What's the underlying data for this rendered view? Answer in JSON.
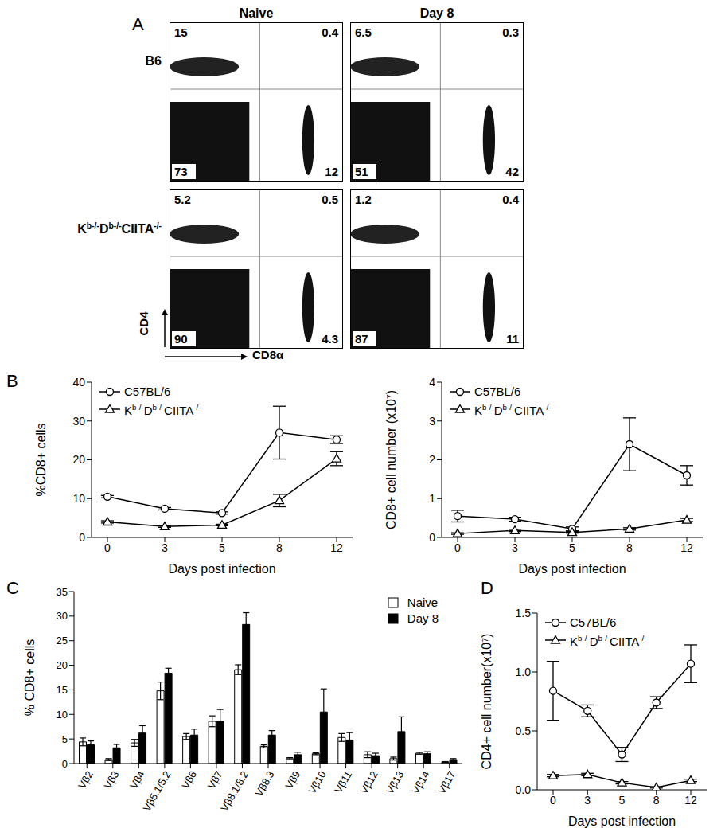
{
  "chart_data": [
    {
      "panel": "A",
      "type": "quadrant_plot",
      "x_label": "CD8α",
      "y_label": "CD4",
      "column_labels": [
        "Naive",
        "Day 8"
      ],
      "row_labels": [
        "B6",
        "Kb-/-Db-/-CIITA-/-"
      ],
      "plots": [
        {
          "row": 0,
          "column": 0,
          "quadrants": {
            "upper_left": 15,
            "upper_right": 0.4,
            "lower_left": 73,
            "lower_right": 12
          }
        },
        {
          "row": 0,
          "column": 1,
          "quadrants": {
            "upper_left": 6.5,
            "upper_right": 0.3,
            "lower_left": 51,
            "lower_right": 42
          }
        },
        {
          "row": 1,
          "column": 0,
          "quadrants": {
            "upper_left": 5.2,
            "upper_right": 0.5,
            "lower_left": 90,
            "lower_right": 4.3
          }
        },
        {
          "row": 1,
          "column": 1,
          "quadrants": {
            "upper_left": 1.2,
            "upper_right": 0.4,
            "lower_left": 87,
            "lower_right": 11
          }
        }
      ]
    },
    {
      "panel": "B",
      "type": "line",
      "x_label": "Days post infection",
      "y_label": "%CD8+ cells",
      "categories": [
        "0",
        "3",
        "5",
        "8",
        "12"
      ],
      "ylim": [
        0,
        40
      ],
      "yticks": [
        0,
        10,
        20,
        30,
        40
      ],
      "grid": false,
      "legend": "upper left",
      "series": [
        {
          "name": "C57BL/6",
          "color": "#000000",
          "marker": "circle",
          "values": [
            10.5,
            7.4,
            6.3,
            27,
            25.2
          ],
          "errors": [
            0.3,
            0.3,
            0.3,
            6.8,
            1.0
          ]
        },
        {
          "name": "Kb-/-Db-/-CIITA-/-",
          "color": "#000000",
          "marker": "triangle",
          "values": [
            4,
            2.8,
            3.2,
            9.5,
            20.3
          ],
          "errors": [
            0.3,
            0.2,
            0.2,
            1.6,
            1.8
          ]
        }
      ]
    },
    {
      "type": "line",
      "x_label": "Days post infection",
      "y_label": "CD8+ cell number (x10⁷)",
      "categories": [
        "0",
        "3",
        "5",
        "8",
        "12"
      ],
      "ylim": [
        0,
        4
      ],
      "yticks": [
        0,
        1,
        2,
        3,
        4
      ],
      "grid": false,
      "legend": "upper left",
      "series": [
        {
          "name": "C57BL/6",
          "color": "#000000",
          "marker": "circle",
          "values": [
            0.55,
            0.47,
            0.22,
            2.4,
            1.6
          ],
          "errors": [
            0.15,
            0.05,
            0.05,
            0.68,
            0.25
          ]
        },
        {
          "name": "Kb-/-Db-/-CIITA-/-",
          "color": "#000000",
          "marker": "triangle",
          "values": [
            0.1,
            0.18,
            0.13,
            0.22,
            0.45
          ],
          "errors": [
            0.02,
            0.03,
            0.02,
            0.03,
            0.04
          ]
        }
      ]
    },
    {
      "panel": "C",
      "type": "bar",
      "y_label": "% CD8+ cells",
      "categories": [
        "Vβ2",
        "Vβ3",
        "Vβ4",
        "Vβ5.1/5.2",
        "Vβ6",
        "Vβ7",
        "Vβ8.1/8.2",
        "Vβ8.3",
        "Vβ9",
        "Vβ10",
        "Vβ11",
        "Vβ12",
        "Vβ13",
        "Vβ14",
        "Vβ17"
      ],
      "ylim": [
        0,
        35
      ],
      "yticks": [
        0,
        5,
        10,
        15,
        20,
        25,
        30,
        35
      ],
      "grid": false,
      "legend": "upper right",
      "series": [
        {
          "name": "Naive",
          "color": "#ffffff",
          "values": [
            4.4,
            0.8,
            4.2,
            14.8,
            5.5,
            8.6,
            19.1,
            3.5,
            1.0,
            2.0,
            5.3,
            1.8,
            1.0,
            2.1,
            0.3
          ],
          "errors": [
            0.8,
            0.2,
            0.7,
            1.8,
            0.6,
            1.1,
            1.0,
            0.3,
            0.2,
            0.2,
            0.8,
            0.6,
            0.3,
            0.2,
            0.1
          ]
        },
        {
          "name": "Day 8",
          "color": "#000000",
          "values": [
            3.8,
            3.2,
            6.2,
            18.4,
            5.8,
            8.6,
            28.3,
            5.8,
            1.8,
            10.5,
            4.8,
            1.6,
            6.5,
            2.0,
            0.8
          ],
          "errors": [
            0.8,
            0.7,
            1.5,
            1.0,
            1.2,
            2.4,
            2.4,
            0.9,
            0.5,
            4.7,
            1.5,
            0.5,
            3.0,
            0.4,
            0.2
          ]
        }
      ]
    },
    {
      "panel": "D",
      "type": "line",
      "x_label": "Days post infection",
      "y_label": "CD4+ cell number(x10⁷)",
      "categories": [
        "0",
        "3",
        "5",
        "8",
        "12"
      ],
      "ylim": [
        0,
        1.5
      ],
      "yticks": [
        {
          "value": 0,
          "label": "0.0"
        },
        0.5,
        {
          "value": 1,
          "label": "1.0"
        },
        1.5
      ],
      "grid": false,
      "legend": "upper left",
      "series": [
        {
          "name": "C57BL/6",
          "color": "#000000",
          "marker": "circle",
          "values": [
            0.84,
            0.67,
            0.3,
            0.74,
            1.07
          ],
          "errors": [
            0.25,
            0.05,
            0.06,
            0.05,
            0.16
          ]
        },
        {
          "name": "Kb-/-Db-/-CIITA-/-",
          "color": "#000000",
          "marker": "triangle",
          "values": [
            0.12,
            0.13,
            0.06,
            0.02,
            0.08
          ],
          "errors": [
            0.01,
            0.01,
            0.01,
            0.005,
            0.01
          ]
        }
      ]
    }
  ]
}
